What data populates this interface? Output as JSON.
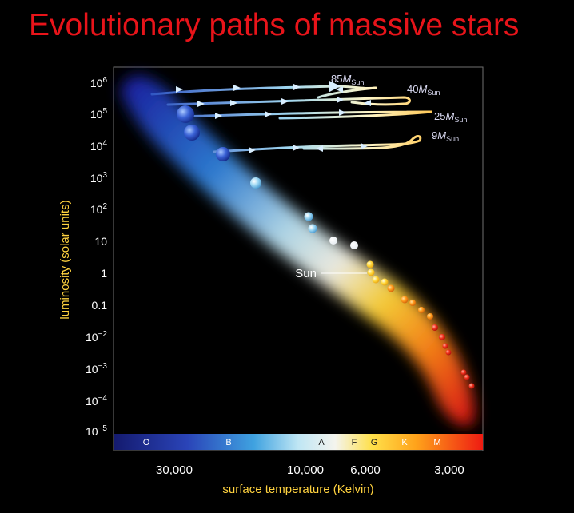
{
  "title": "Evolutionary paths of massive stars",
  "axes": {
    "x_title": "surface temperature (Kelvin)",
    "y_title": "luminosity (solar units)",
    "x_ticks": [
      "30,000",
      "10,000",
      "6,000",
      "3,000"
    ],
    "y_ticks": [
      {
        "base": "10",
        "exp": "6"
      },
      {
        "base": "10",
        "exp": "5"
      },
      {
        "base": "10",
        "exp": "4"
      },
      {
        "base": "10",
        "exp": "3"
      },
      {
        "base": "10",
        "exp": "2"
      },
      {
        "base": "10",
        "exp": ""
      },
      {
        "base": "1",
        "exp": ""
      },
      {
        "base": "0.1",
        "exp": ""
      },
      {
        "base": "10",
        "exp": "−2"
      },
      {
        "base": "10",
        "exp": "−3"
      },
      {
        "base": "10",
        "exp": "−4"
      },
      {
        "base": "10",
        "exp": "−5"
      }
    ]
  },
  "spectral_classes": [
    "O",
    "B",
    "A",
    "F",
    "G",
    "K",
    "M"
  ],
  "tracks": [
    {
      "mass": "85",
      "unit_m": "M",
      "unit_sub": "Sun"
    },
    {
      "mass": "40",
      "unit_m": "M",
      "unit_sub": "Sun"
    },
    {
      "mass": "25",
      "unit_m": "M",
      "unit_sub": "Sun"
    },
    {
      "mass": "9",
      "unit_m": "M",
      "unit_sub": "Sun"
    }
  ],
  "sun_label": "Sun",
  "colors": {
    "title": "#e8141a",
    "axis_title": "#ffd23f",
    "hot_star": "#3a5fd0",
    "cool_star": "#e0281a"
  }
}
